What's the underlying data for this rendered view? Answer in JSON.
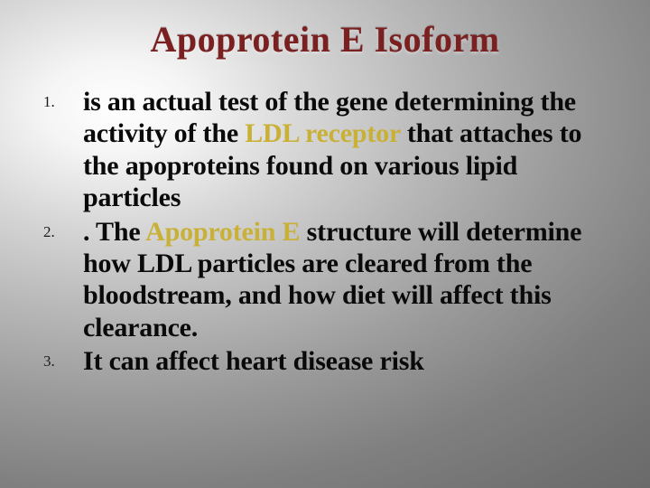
{
  "title": {
    "text": "Apoprotein E Isoform",
    "color": "#7a2020",
    "fontsize": 40
  },
  "background": {
    "gradient_center": "#ffffff",
    "gradient_edge": "#606060"
  },
  "highlight_color": "#c9b037",
  "body_text_color": "#0a0a0a",
  "body_fontsize": 30,
  "number_fontsize": 17,
  "items": [
    {
      "num": "1.",
      "pre": "is an actual test of the gene determining the activity of the ",
      "hl": "LDL receptor",
      "post": " that attaches to the apoproteins found on various lipid particles"
    },
    {
      "num": "2.",
      "pre": ". The ",
      "hl": "Apoprotein E",
      "post": " structure will determine how LDL particles are cleared from the bloodstream, and how diet will affect this clearance."
    },
    {
      "num": "3.",
      "pre": "It can affect heart disease risk",
      "hl": "",
      "post": ""
    }
  ]
}
